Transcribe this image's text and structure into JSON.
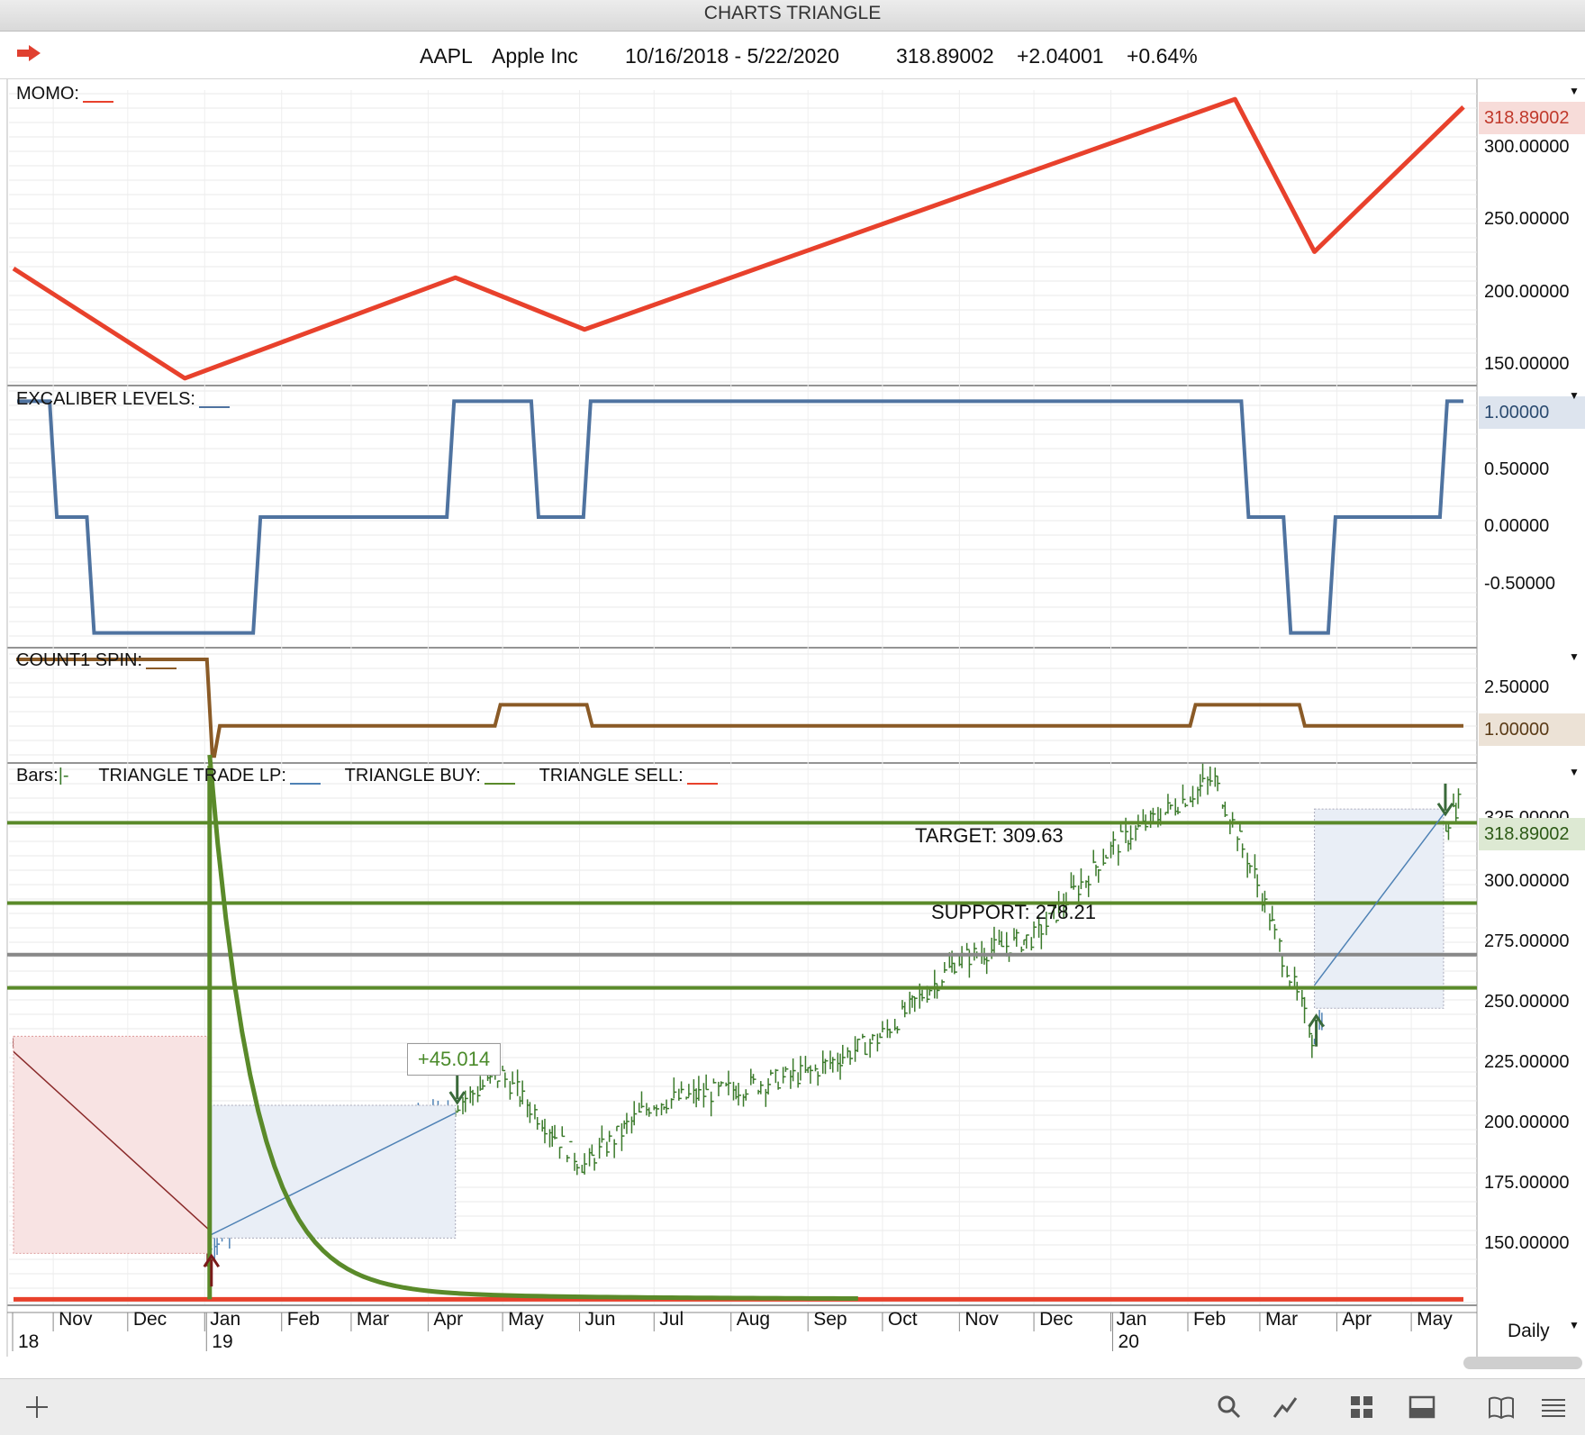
{
  "window": {
    "title": "CHARTS TRIANGLE"
  },
  "header": {
    "symbol": "AAPL",
    "name": "Apple Inc",
    "date_range": "10/16/2018 - 5/22/2020",
    "last": "318.89002",
    "change": "+2.04001",
    "change_pct": "+0.64%"
  },
  "colors": {
    "momo": "#e8412c",
    "excaliber": "#4f73a0",
    "count1": "#8a5a26",
    "buy": "#5a8a2a",
    "sell": "#e8412c",
    "lp": "#4f82b5"
  },
  "panels": {
    "momo": {
      "label": "MOMO:",
      "last_tag": "318.89002",
      "ticks": [
        "300.00000",
        "250.00000",
        "200.00000",
        "150.00000"
      ]
    },
    "excaliber": {
      "label": "EXCALIBER LEVELS:",
      "last_tag": "1.00000",
      "ticks": [
        "0.50000",
        "0.00000",
        "-0.50000"
      ]
    },
    "count1": {
      "label": "COUNT1 SPIN:",
      "last_tag": "1.00000",
      "ticks": [
        "2.50000"
      ]
    },
    "price": {
      "legend": {
        "bars": "Bars:",
        "bars_mark": "|-",
        "lp": "TRIANGLE TRADE LP:",
        "buy": "TRIANGLE BUY:",
        "sell": "TRIANGLE SELL:"
      },
      "last_tag": "318.89002",
      "ticks": [
        "325.00000",
        "300.00000",
        "275.00000",
        "250.00000",
        "225.00000",
        "200.00000",
        "175.00000",
        "150.00000"
      ],
      "target_label": "TARGET: 309.63",
      "support_label": "SUPPORT: 278.21",
      "gain_label": "+45.014"
    }
  },
  "xaxis": {
    "months": [
      "Nov",
      "Dec",
      "Jan",
      "Feb",
      "Mar",
      "Apr",
      "May",
      "Jun",
      "Jul",
      "Aug",
      "Sep",
      "Oct",
      "Nov",
      "Dec",
      "Jan",
      "Feb",
      "Mar",
      "Apr",
      "May"
    ],
    "years": [
      "18",
      "19",
      "20"
    ],
    "interval": "Daily"
  },
  "chart_data": [
    {
      "type": "line",
      "name": "MOMO",
      "x": [
        "2018-10-16",
        "2018-12-24",
        "2019-04-12",
        "2019-06-03",
        "2020-02-20",
        "2020-03-23",
        "2020-05-22"
      ],
      "y": [
        213,
        141,
        207,
        173,
        324,
        224,
        318.89
      ],
      "ylim": [
        138,
        330
      ]
    },
    {
      "type": "line",
      "name": "EXCALIBER LEVELS",
      "step": true,
      "x": [
        "2018-10-16",
        "2018-11-01",
        "2018-11-16",
        "2019-01-22",
        "2019-04-10",
        "2019-05-14",
        "2019-06-04",
        "2020-02-24",
        "2020-03-12",
        "2020-03-30",
        "2020-05-14"
      ],
      "y": [
        1,
        0,
        -1,
        0,
        1,
        0,
        1,
        0,
        -1,
        0,
        1
      ],
      "ylim": [
        -1.12,
        1.12
      ]
    },
    {
      "type": "line",
      "name": "COUNT1 SPIN",
      "step": true,
      "x": [
        "2018-10-16",
        "2019-01-03",
        "2019-01-06",
        "2019-04-29",
        "2019-06-05",
        "2020-02-03",
        "2020-03-18"
      ],
      "y": [
        3.2,
        0,
        1.0,
        1.7,
        1.0,
        1.7,
        1.0
      ],
      "ylim": [
        -0.2,
        3.5
      ]
    },
    {
      "type": "line",
      "name": "AAPL daily",
      "x": [
        "2018-10-16",
        "2018-11-01",
        "2018-11-20",
        "2018-12-10",
        "2019-01-03",
        "2019-02-01",
        "2019-03-01",
        "2019-04-12",
        "2019-05-01",
        "2019-06-03",
        "2019-07-01",
        "2019-08-01",
        "2019-09-03",
        "2019-10-01",
        "2019-11-01",
        "2019-12-02",
        "2020-01-02",
        "2020-02-12",
        "2020-02-28",
        "2020-03-23",
        "2020-04-15",
        "2020-05-01",
        "2020-05-22"
      ],
      "y": [
        222,
        215,
        180,
        170,
        142,
        168,
        175,
        199,
        211,
        175,
        200,
        205,
        212,
        226,
        256,
        265,
        300,
        327,
        290,
        224,
        285,
        290,
        318.89
      ],
      "ylim": [
        121,
        332
      ],
      "lines": [
        {
          "name": "TARGET",
          "value": 309.63
        },
        {
          "name": "SUPPORT",
          "value": 278.21
        }
      ]
    }
  ]
}
